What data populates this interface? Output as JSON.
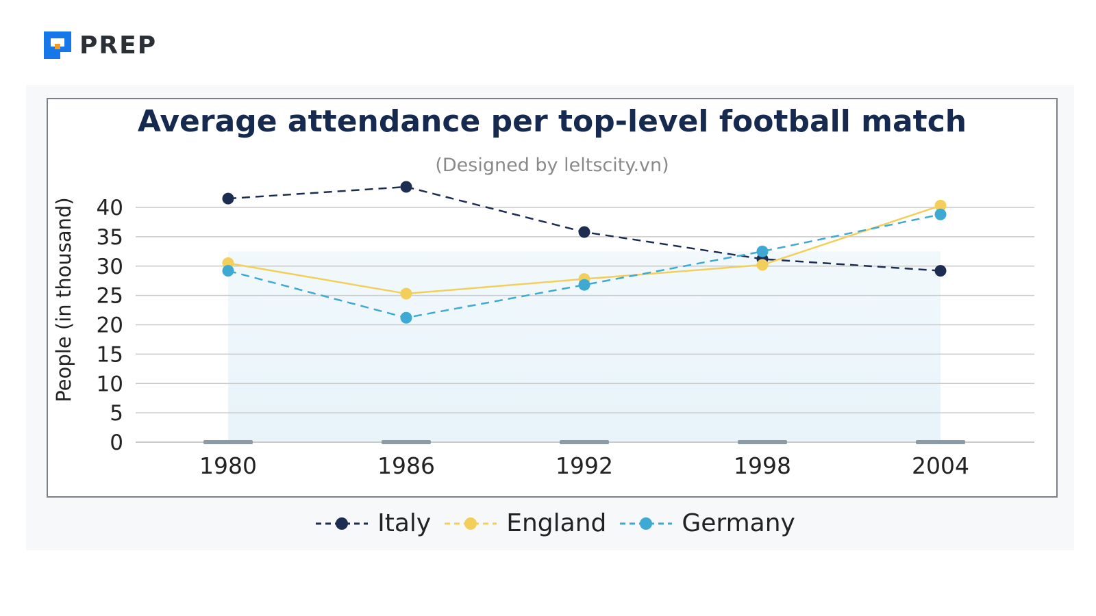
{
  "brand": {
    "name": "PREP"
  },
  "colors": {
    "italy": "#1d2d52",
    "england": "#f2cf5b",
    "germany": "#3ea9d3",
    "grid": "#c9c9c9",
    "axis_text": "#222222"
  },
  "chart_data": {
    "type": "line",
    "title": "Average attendance per top-level football match",
    "subtitle": "(Designed by leltscity.vn)",
    "xlabel": "",
    "ylabel": "People (in thousand)",
    "categories": [
      "1980",
      "1986",
      "1992",
      "1998",
      "2004"
    ],
    "ylim": [
      0,
      40
    ],
    "yticks": [
      0,
      5,
      10,
      15,
      20,
      25,
      30,
      35,
      40
    ],
    "series": [
      {
        "name": "Italy",
        "values": [
          41.5,
          43.5,
          35.8,
          31.2,
          29.2
        ],
        "style": "dashed",
        "color": "#1d2d52"
      },
      {
        "name": "England",
        "values": [
          30.5,
          25.3,
          27.8,
          30.2,
          40.3
        ],
        "style": "solid",
        "color": "#f2cf5b"
      },
      {
        "name": "Germany",
        "values": [
          29.2,
          21.2,
          26.8,
          32.5,
          38.8
        ],
        "style": "dashed",
        "color": "#3ea9d3"
      }
    ],
    "legend_position": "bottom-center",
    "grid": true
  }
}
